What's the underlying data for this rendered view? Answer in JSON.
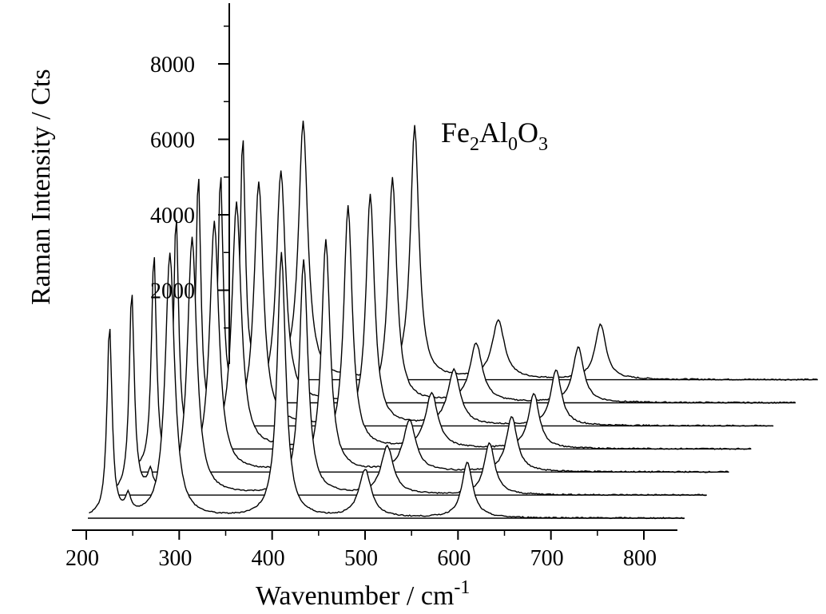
{
  "chart_data": {
    "type": "line",
    "style": "waterfall-stacked-spectra",
    "xlabel_main": "Wavenumber / cm",
    "xlabel_sup": "-1",
    "ylabel": "Raman Intensity / Cts",
    "annotation": {
      "base": [
        "Fe",
        "Al",
        "O"
      ],
      "subs": [
        "2",
        "0",
        "3"
      ]
    },
    "x_ticks": [
      200,
      300,
      400,
      500,
      600,
      700,
      800
    ],
    "y_ticks": [
      2000,
      4000,
      6000,
      8000
    ],
    "xlim": [
      200,
      800
    ],
    "ylim": [
      0,
      8000
    ],
    "grid": false,
    "series_count": 7,
    "peak_positions_cm1": [
      225,
      245,
      290,
      410,
      500,
      610
    ],
    "peak_heights_cts": [
      [
        5200,
        500,
        7200,
        7200,
        1300,
        1500
      ],
      [
        5500,
        500,
        7000,
        6400,
        1300,
        1400
      ],
      [
        5900,
        600,
        6800,
        6300,
        1400,
        1500
      ],
      [
        6300,
        600,
        6700,
        6600,
        1500,
        1500
      ],
      [
        6800,
        600,
        6600,
        6300,
        1500,
        1500
      ],
      [
        6200,
        700,
        6300,
        6100,
        1600,
        1500
      ],
      [
        6600,
        700,
        7000,
        6900,
        1600,
        1500
      ]
    ]
  }
}
